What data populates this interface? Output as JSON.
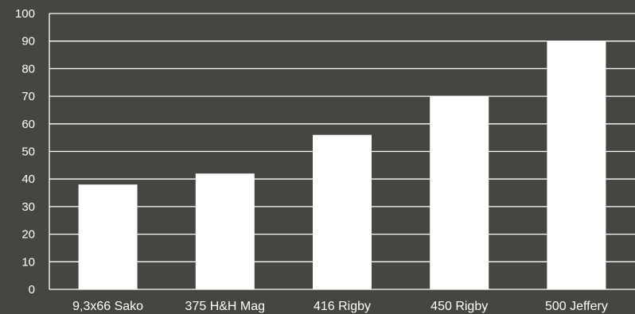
{
  "chart_data": {
    "type": "bar",
    "categories": [
      "9,3x66 Sako",
      "375 H&H Mag",
      "416 Rigby",
      "450 Rigby",
      "500 Jeffery"
    ],
    "values": [
      38,
      42,
      56,
      70,
      90
    ],
    "ylim": [
      0,
      100
    ],
    "yticks": [
      0,
      10,
      20,
      30,
      40,
      50,
      60,
      70,
      80,
      90,
      100
    ],
    "grid": true,
    "legend": "none",
    "colors": {
      "background": "#464540",
      "bar": "#ffffff",
      "grid": "#ffffff",
      "text": "#ffffff"
    }
  }
}
